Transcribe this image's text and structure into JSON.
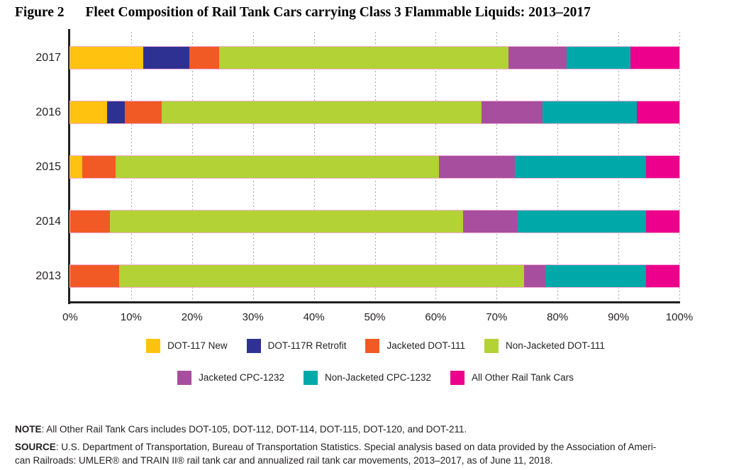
{
  "figure": {
    "label": "Figure 2",
    "title": "Fleet Composition of Rail Tank Cars carrying Class 3 Flammable Liquids: 2013–2017"
  },
  "chart_data": {
    "type": "bar",
    "orientation": "horizontal",
    "stacked": true,
    "units": "percent of fleet",
    "categories": [
      "2017",
      "2016",
      "2015",
      "2014",
      "2013"
    ],
    "series": [
      {
        "name": "DOT-117 New",
        "color": "#FFC20E",
        "values": [
          12,
          6,
          2,
          0,
          0
        ]
      },
      {
        "name": "DOT-117R Retrofit",
        "color": "#2E3192",
        "values": [
          7.5,
          3,
          0,
          0,
          0
        ]
      },
      {
        "name": "Jacketed DOT-111",
        "color": "#F15A24",
        "values": [
          5,
          6,
          5.5,
          6.5,
          8
        ]
      },
      {
        "name": "Non-Jacketed DOT-111",
        "color": "#B2D235",
        "values": [
          47.5,
          52.5,
          53,
          58,
          66.5
        ]
      },
      {
        "name": "Jacketed CPC-1232",
        "color": "#A74E9E",
        "values": [
          9.5,
          10,
          12.5,
          9,
          3.5
        ]
      },
      {
        "name": "Non-Jacketed CPC-1232",
        "color": "#00A8A9",
        "values": [
          10.5,
          15.5,
          21.5,
          21,
          16.5
        ]
      },
      {
        "name": "All Other Rail Tank Cars",
        "color": "#EC008C",
        "values": [
          8,
          7,
          5.5,
          5.5,
          5.5
        ]
      }
    ],
    "x_axis": {
      "min": 0,
      "max": 100,
      "tick_labels": [
        "0%",
        "10%",
        "20%",
        "30%",
        "40%",
        "50%",
        "60%",
        "70%",
        "80%",
        "90%",
        "100%"
      ]
    },
    "grid": "dashed vertical gridlines every 10%",
    "legend_position": "bottom, two centered rows"
  },
  "legend": {
    "rows": [
      [
        0,
        1,
        2,
        3
      ],
      [
        4,
        5,
        6
      ]
    ]
  },
  "notes": {
    "note_label": "NOTE",
    "note_text": ": All Other Rail Tank Cars includes DOT-105, DOT-112, DOT-114, DOT-115, DOT-120, and DOT-211.",
    "source_label": "SOURCE",
    "source_line1": ": U.S. Department of Transportation, Bureau of Transportation Statistics.  Special analysis based on data provided by the Association of Ameri-",
    "source_line2": "can Railroads: UMLER® and TRAIN II® rail tank car and annualized rail tank car movements, 2013–2017, as of June 11, 2018."
  }
}
